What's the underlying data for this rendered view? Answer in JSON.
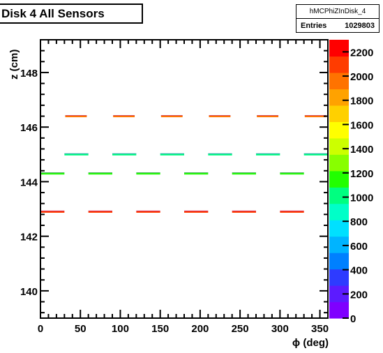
{
  "title": "Disk 4 All Sensors",
  "stats": {
    "name": "hMCPhiZInDisk_4",
    "entries_label": "Entries",
    "entries_value": "1029803"
  },
  "chart_data": {
    "type": "heatmap",
    "title": "Disk 4 All Sensors",
    "xlabel": "ϕ (deg)",
    "ylabel": "z (cm)",
    "xlim": [
      0,
      360
    ],
    "ylim": [
      139,
      149.2
    ],
    "zlim": [
      0,
      2300
    ],
    "x_ticks": [
      0,
      50,
      100,
      150,
      200,
      250,
      300,
      350
    ],
    "y_ticks": [
      140,
      142,
      144,
      146,
      148
    ],
    "z_ticks": [
      0,
      200,
      400,
      600,
      800,
      1000,
      1200,
      1400,
      1600,
      1800,
      2000,
      2200
    ],
    "grid": false,
    "bands": [
      {
        "z": 146.4,
        "counts": 2000,
        "segments": [
          [
            31,
            58
          ],
          [
            91,
            118
          ],
          [
            151,
            178
          ],
          [
            211,
            238
          ],
          [
            271,
            298
          ],
          [
            331,
            358
          ]
        ]
      },
      {
        "z": 145.0,
        "counts": 1000,
        "segments": [
          [
            30,
            60
          ],
          [
            90,
            120
          ],
          [
            150,
            180
          ],
          [
            210,
            240
          ],
          [
            270,
            300
          ],
          [
            330,
            360
          ]
        ]
      },
      {
        "z": 144.3,
        "counts": 1100,
        "segments": [
          [
            0,
            30
          ],
          [
            60,
            90
          ],
          [
            120,
            150
          ],
          [
            180,
            210
          ],
          [
            240,
            270
          ],
          [
            300,
            330
          ]
        ]
      },
      {
        "z": 142.9,
        "counts": 2100,
        "segments": [
          [
            0,
            30
          ],
          [
            60,
            90
          ],
          [
            120,
            150
          ],
          [
            180,
            210
          ],
          [
            240,
            270
          ],
          [
            300,
            330
          ]
        ]
      }
    ]
  },
  "palette": [
    "#7f00ff",
    "#5c1bff",
    "#2e3bff",
    "#0080ff",
    "#00b4ff",
    "#00e0ff",
    "#00ffc8",
    "#00ff80",
    "#22ff00",
    "#88ff00",
    "#ccff00",
    "#ffff00",
    "#ffd000",
    "#ffa200",
    "#ff7300",
    "#ff3c00",
    "#ff0000"
  ]
}
